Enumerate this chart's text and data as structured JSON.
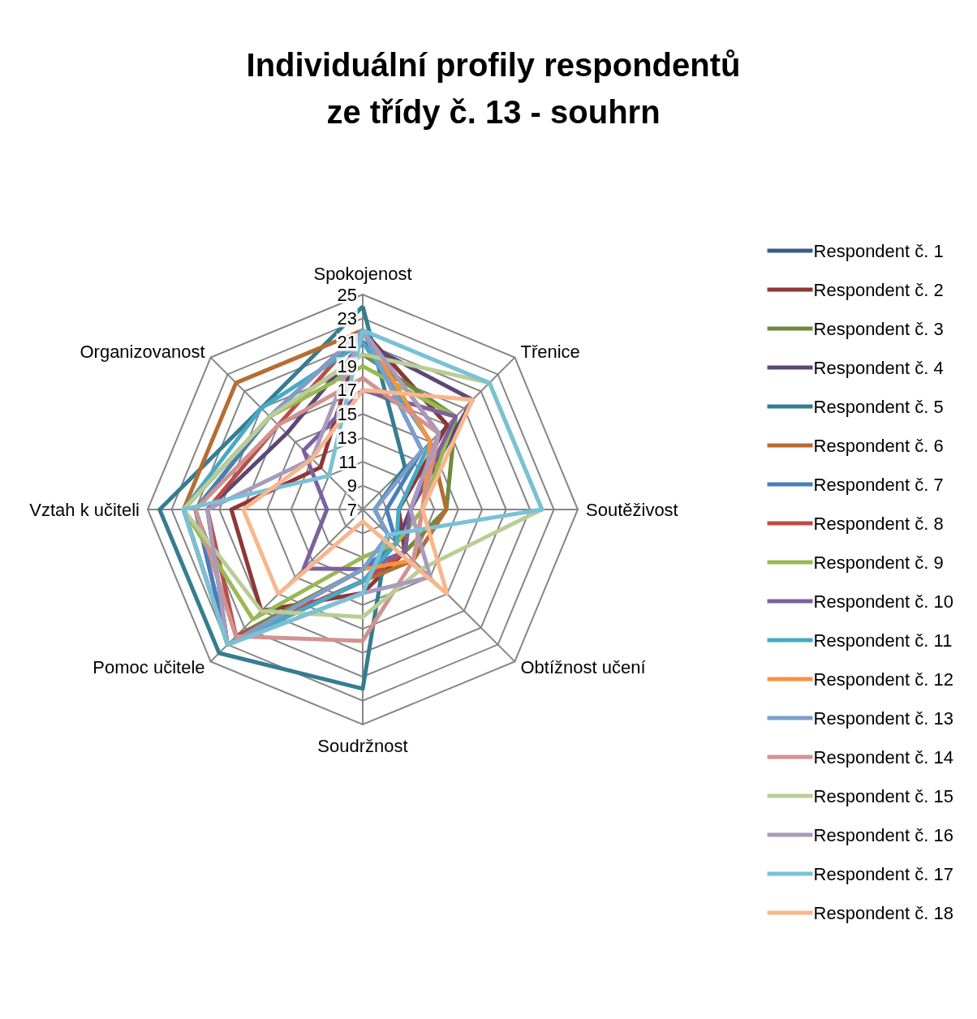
{
  "chart_data": {
    "type": "radar",
    "title": "Individuální profily respondentů\nze třídy č. 13 - souhrn",
    "categories": [
      "Spokojenost",
      "Třenice",
      "Soutěživost",
      "Obtížnost učení",
      "Soudržnost",
      "Pomoc učitele",
      "Vztah k učiteli",
      "Organizovanost"
    ],
    "ylim": [
      7,
      25
    ],
    "yticks": [
      7,
      9,
      11,
      13,
      15,
      17,
      19,
      21,
      23,
      25
    ],
    "legend": "right",
    "marker": "none",
    "line_style": "solid",
    "series": [
      {
        "name": "Respondent č. 1",
        "color": "#385d8a",
        "values": [
          22,
          17,
          10,
          12,
          13,
          23,
          21,
          18
        ]
      },
      {
        "name": "Respondent č. 2",
        "color": "#8c3836",
        "values": [
          22,
          17,
          10,
          12,
          14,
          19,
          18,
          12
        ]
      },
      {
        "name": "Respondent č. 3",
        "color": "#71893f",
        "values": [
          20,
          18,
          14,
          12,
          12,
          22,
          21,
          18
        ]
      },
      {
        "name": "Respondent č. 4",
        "color": "#5c4776",
        "values": [
          21,
          20,
          11,
          11,
          12,
          23,
          20,
          16
        ]
      },
      {
        "name": "Respondent č. 5",
        "color": "#357d91",
        "values": [
          24,
          12,
          8,
          10,
          22,
          24,
          24,
          19
        ]
      },
      {
        "name": "Respondent č. 6",
        "color": "#b66d31",
        "values": [
          22,
          15,
          14,
          13,
          13,
          23,
          22,
          22
        ]
      },
      {
        "name": "Respondent č. 7",
        "color": "#4a7ebb",
        "values": [
          22,
          14,
          9,
          11,
          12,
          23,
          21,
          18
        ]
      },
      {
        "name": "Respondent č. 8",
        "color": "#be4b48",
        "values": [
          22,
          16,
          11,
          12,
          13,
          22,
          20,
          17
        ]
      },
      {
        "name": "Respondent č. 9",
        "color": "#98b954",
        "values": [
          19,
          18,
          12,
          11,
          11,
          20,
          22,
          18
        ]
      },
      {
        "name": "Respondent č. 10",
        "color": "#7d60a0",
        "values": [
          17,
          18,
          11,
          12,
          12,
          14,
          10,
          14
        ]
      },
      {
        "name": "Respondent č. 11",
        "color": "#46aac5",
        "values": [
          21,
          15,
          10,
          11,
          13,
          23,
          22,
          19
        ]
      },
      {
        "name": "Respondent č. 12",
        "color": "#f69240",
        "values": [
          22,
          15,
          12,
          13,
          12,
          23,
          22,
          18
        ]
      },
      {
        "name": "Respondent č. 13",
        "color": "#7c9ece",
        "values": [
          22,
          14,
          8,
          10,
          12,
          23,
          22,
          18
        ]
      },
      {
        "name": "Respondent č. 14",
        "color": "#d19392",
        "values": [
          18,
          16,
          12,
          13,
          18,
          22,
          21,
          17
        ]
      },
      {
        "name": "Respondent č. 15",
        "color": "#b9cd96",
        "values": [
          20,
          22,
          22,
          14,
          16,
          19,
          22,
          18
        ]
      },
      {
        "name": "Respondent č. 16",
        "color": "#a89bbd",
        "values": [
          22,
          16,
          11,
          15,
          14,
          23,
          20,
          13
        ]
      },
      {
        "name": "Respondent č. 17",
        "color": "#79c2d6",
        "values": [
          22,
          22,
          22,
          10,
          14,
          23,
          22,
          11
        ]
      },
      {
        "name": "Respondent č. 18",
        "color": "#f9b68c",
        "values": [
          17,
          20,
          12,
          17,
          8,
          17,
          17,
          13
        ]
      }
    ]
  }
}
